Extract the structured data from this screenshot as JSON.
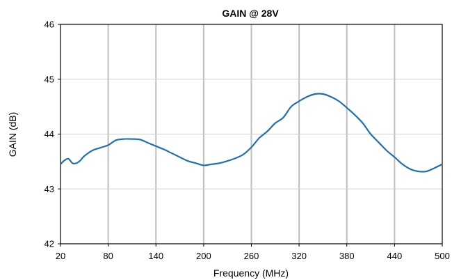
{
  "chart_data": {
    "type": "line",
    "title": "GAIN @ 28V",
    "xlabel": "Frequency (MHz)",
    "ylabel": "GAIN (dB)",
    "xlim": [
      20,
      500
    ],
    "ylim": [
      42,
      46
    ],
    "xticks": [
      20,
      80,
      140,
      200,
      260,
      320,
      380,
      440,
      500
    ],
    "yticks": [
      42,
      43,
      44,
      45,
      46
    ],
    "grid": true,
    "series": [
      {
        "color": "#1f6fb5",
        "x": [
          20,
          25,
          30,
          35,
          40,
          45,
          50,
          60,
          70,
          80,
          90,
          100,
          110,
          120,
          130,
          140,
          150,
          160,
          170,
          180,
          190,
          200,
          210,
          220,
          230,
          240,
          250,
          260,
          270,
          280,
          290,
          300,
          310,
          320,
          330,
          340,
          350,
          360,
          370,
          380,
          390,
          400,
          410,
          420,
          430,
          440,
          450,
          460,
          470,
          480,
          490,
          500
        ],
        "y": [
          43.45,
          43.52,
          43.55,
          43.47,
          43.47,
          43.52,
          43.6,
          43.7,
          43.75,
          43.8,
          43.89,
          43.91,
          43.91,
          43.9,
          43.84,
          43.78,
          43.72,
          43.65,
          43.58,
          43.51,
          43.47,
          43.43,
          43.45,
          43.47,
          43.51,
          43.56,
          43.63,
          43.76,
          43.93,
          44.05,
          44.2,
          44.3,
          44.5,
          44.6,
          44.68,
          44.73,
          44.73,
          44.68,
          44.6,
          44.48,
          44.35,
          44.2,
          44.0,
          43.85,
          43.7,
          43.58,
          43.45,
          43.36,
          43.32,
          43.32,
          43.38,
          43.45
        ]
      }
    ]
  }
}
